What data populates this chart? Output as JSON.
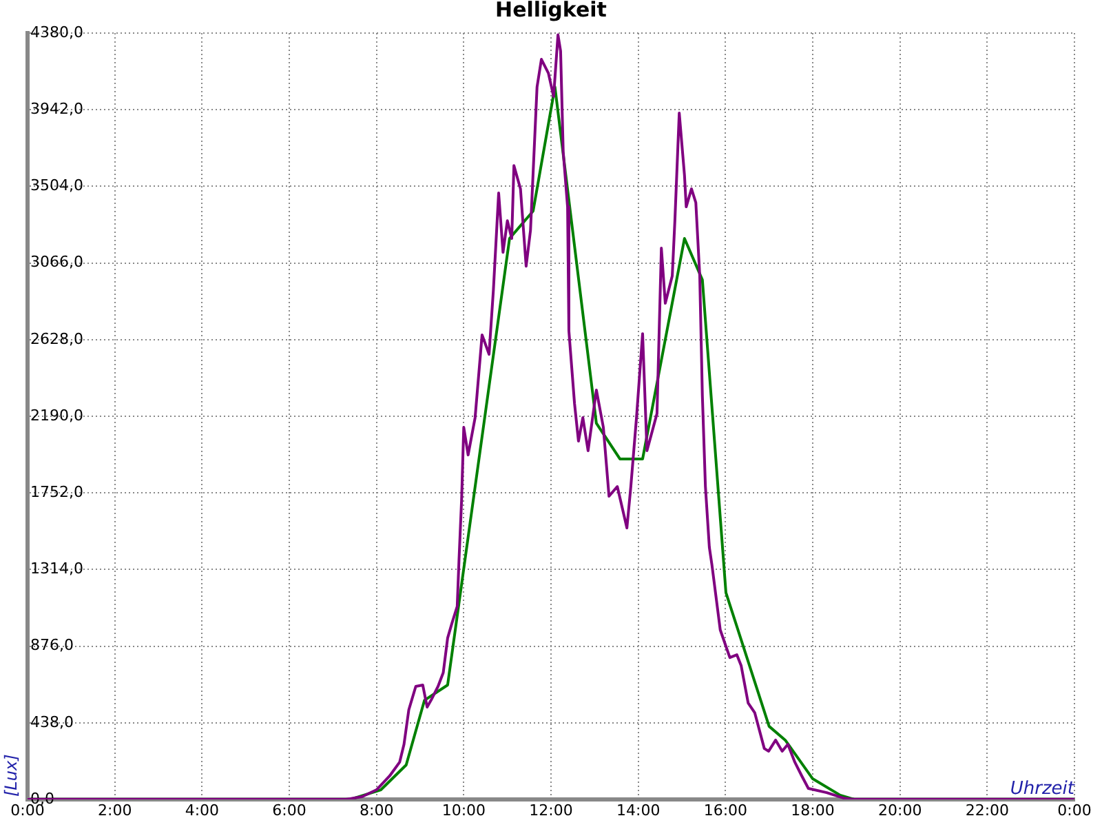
{
  "chart_data": {
    "type": "line",
    "title": "Helligkeit",
    "xlabel": "Uhrzeit",
    "ylabel": "[Lux]",
    "xlim": [
      0,
      24
    ],
    "xticks": [
      {
        "value": 0,
        "label": "0:00"
      },
      {
        "value": 2,
        "label": "2:00"
      },
      {
        "value": 4,
        "label": "4:00"
      },
      {
        "value": 6,
        "label": "6:00"
      },
      {
        "value": 8,
        "label": "8:00"
      },
      {
        "value": 10,
        "label": "10:00"
      },
      {
        "value": 12,
        "label": "12:00"
      },
      {
        "value": 14,
        "label": "14:00"
      },
      {
        "value": 16,
        "label": "16:00"
      },
      {
        "value": 18,
        "label": "18:00"
      },
      {
        "value": 20,
        "label": "20:00"
      },
      {
        "value": 22,
        "label": "22:00"
      },
      {
        "value": 24,
        "label": "0:00"
      }
    ],
    "ylim": [
      0,
      4380
    ],
    "yticks": [
      {
        "value": 0,
        "label": "0,0"
      },
      {
        "value": 438,
        "label": "438,0"
      },
      {
        "value": 876,
        "label": "876,0"
      },
      {
        "value": 1314,
        "label": "1314,0"
      },
      {
        "value": 1752,
        "label": "1752,0"
      },
      {
        "value": 2190,
        "label": "2190,0"
      },
      {
        "value": 2628,
        "label": "2628,0"
      },
      {
        "value": 3066,
        "label": "3066,0"
      },
      {
        "value": 3504,
        "label": "3504,0"
      },
      {
        "value": 3942,
        "label": "3942,0"
      },
      {
        "value": 4380,
        "label": "4380,0"
      }
    ],
    "grid": true,
    "legend": false,
    "marker": "none",
    "line_style": "solid",
    "series": [
      {
        "color": "#800080",
        "x": [
          0,
          7.3,
          7.67,
          8.0,
          8.3,
          8.53,
          8.63,
          8.74,
          8.9,
          9.06,
          9.16,
          9.25,
          9.41,
          9.53,
          9.63,
          9.73,
          9.85,
          9.89,
          9.95,
          10.0,
          10.1,
          10.26,
          10.42,
          10.58,
          10.68,
          10.8,
          10.9,
          11.0,
          11.1,
          11.15,
          11.3,
          11.43,
          11.53,
          11.68,
          11.78,
          11.94,
          12.06,
          12.16,
          12.22,
          12.28,
          12.38,
          12.41,
          12.54,
          12.63,
          12.73,
          12.85,
          13.04,
          13.2,
          13.33,
          13.52,
          13.74,
          13.83,
          13.96,
          14.1,
          14.2,
          14.43,
          14.53,
          14.62,
          14.78,
          14.84,
          14.94,
          15.06,
          15.1,
          15.22,
          15.32,
          15.41,
          15.47,
          15.54,
          15.63,
          15.69,
          15.88,
          16.1,
          16.26,
          16.36,
          16.52,
          16.67,
          16.89,
          16.99,
          17.15,
          17.3,
          17.43,
          17.59,
          17.75,
          17.9,
          18.32,
          18.7,
          18.95,
          24
        ],
        "values": [
          0,
          0,
          16,
          55,
          134,
          213,
          315,
          512,
          646,
          654,
          528,
          567,
          646,
          725,
          922,
          1008,
          1103,
          1363,
          1709,
          2127,
          1969,
          2182,
          2655,
          2544,
          2914,
          3466,
          3127,
          3308,
          3206,
          3623,
          3490,
          3048,
          3253,
          4072,
          4230,
          4151,
          4017,
          4370,
          4277,
          3702,
          3387,
          2678,
          2261,
          2048,
          2182,
          1993,
          2340,
          2127,
          1733,
          1788,
          1552,
          1788,
          2182,
          2662,
          1993,
          2206,
          3151,
          2836,
          2993,
          3308,
          3923,
          3568,
          3387,
          3490,
          3411,
          2993,
          2308,
          1788,
          1441,
          1339,
          969,
          811,
          827,
          764,
          551,
          496,
          291,
          276,
          339,
          276,
          315,
          213,
          134,
          63,
          39,
          8,
          0,
          0
        ]
      },
      {
        "color": "#008000",
        "x": [
          0,
          7.4,
          8.1,
          8.68,
          9.1,
          9.63,
          11.05,
          11.59,
          12.09,
          13.04,
          13.58,
          14.1,
          15.06,
          15.47,
          16.01,
          17.0,
          17.37,
          18.0,
          18.63,
          18.95,
          24
        ],
        "values": [
          0,
          0,
          55,
          197,
          567,
          654,
          3206,
          3363,
          4072,
          2150,
          1946,
          1946,
          3206,
          2970,
          1182,
          418,
          339,
          118,
          24,
          0,
          0
        ]
      }
    ]
  }
}
